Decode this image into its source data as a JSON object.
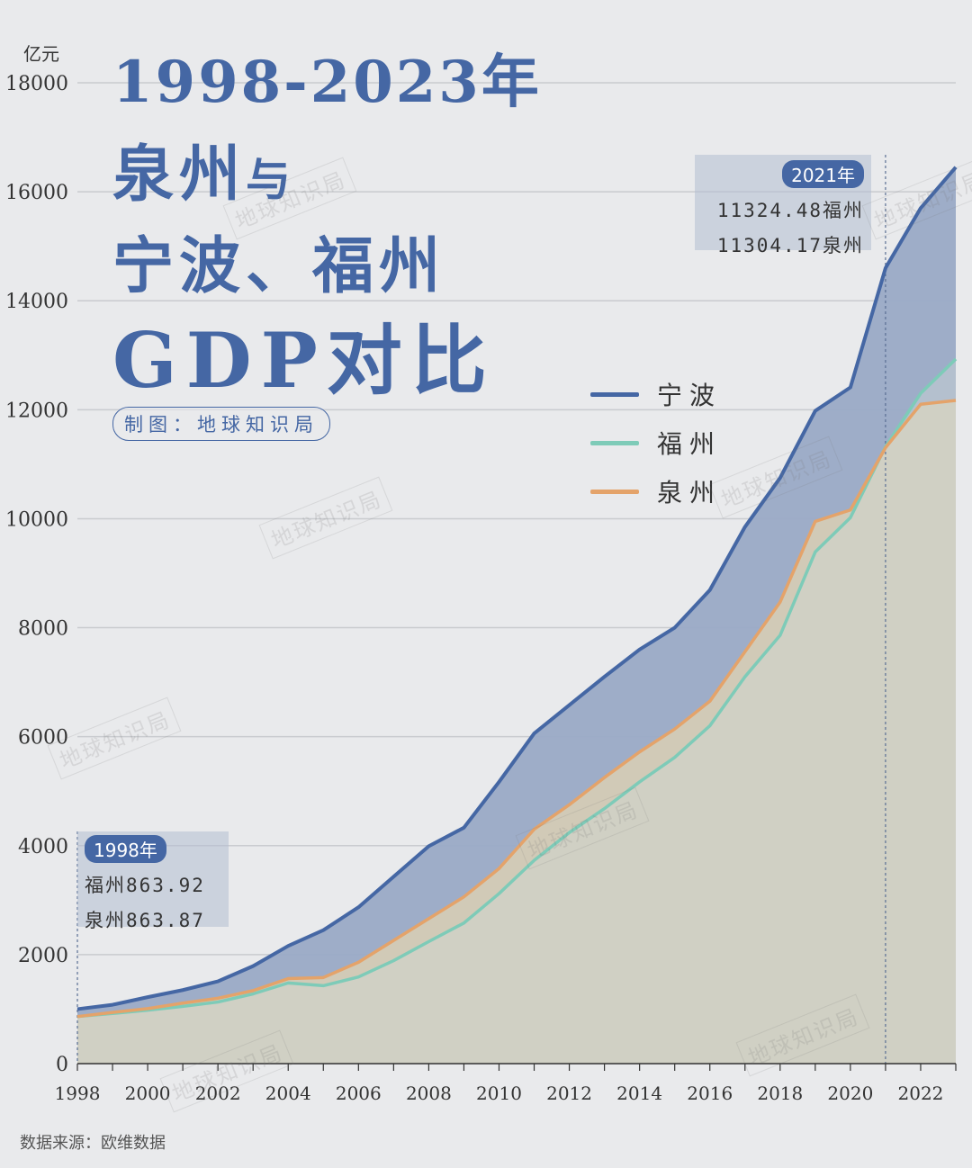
{
  "header": {
    "unit": "亿元",
    "title_line1": "1998-2023年",
    "title_line2a": "泉州",
    "title_line2b": "与",
    "title_line3": "宁波、福州",
    "title_line4": "GDP对比",
    "maker": "制图：地球知识局"
  },
  "footer": {
    "source": "数据来源：欧维数据"
  },
  "watermark": "地球知识局",
  "callouts": {
    "y2021": {
      "year": "2021年",
      "line1": "11324.48福州",
      "line2": "11304.17泉州"
    },
    "y1998": {
      "year": "1998年",
      "line1": "福州863.92",
      "line2": "泉州863.87"
    }
  },
  "colors": {
    "ningbo": "#4567a4",
    "fuzhou": "#7ecbb8",
    "quanzhou": "#e4a36a",
    "ningbo_fill": "#9aaac6",
    "quanzhou_fill": "#d4cbb6",
    "fuzhou_fill": "#cfd8d4"
  },
  "chart_data": {
    "type": "area",
    "title": "1998-2023年泉州与宁波、福州GDP对比",
    "ylabel": "亿元",
    "xlabel": "",
    "ylim": [
      0,
      18000
    ],
    "yticks": [
      0,
      2000,
      4000,
      6000,
      8000,
      10000,
      12000,
      14000,
      16000,
      18000
    ],
    "xticks": [
      1998,
      2000,
      2002,
      2004,
      2006,
      2008,
      2010,
      2012,
      2014,
      2016,
      2018,
      2020,
      2022
    ],
    "grid": true,
    "legend_position": "right-middle",
    "x": [
      1998,
      1999,
      2000,
      2001,
      2002,
      2003,
      2004,
      2005,
      2006,
      2007,
      2008,
      2009,
      2010,
      2011,
      2012,
      2013,
      2014,
      2015,
      2016,
      2017,
      2018,
      2019,
      2020,
      2021,
      2022,
      2023
    ],
    "series": [
      {
        "name": "宁波",
        "values": [
          1000,
          1080,
          1220,
          1350,
          1510,
          1790,
          2160,
          2450,
          2870,
          3430,
          3990,
          4330,
          5170,
          6060,
          6580,
          7100,
          7600,
          8000,
          8690,
          9850,
          10750,
          11980,
          12410,
          14600,
          15700,
          16450
        ]
      },
      {
        "name": "福州",
        "values": [
          863.92,
          920,
          980,
          1050,
          1130,
          1280,
          1480,
          1430,
          1590,
          1890,
          2240,
          2580,
          3120,
          3730,
          4240,
          4680,
          5170,
          5620,
          6200,
          7100,
          7860,
          9390,
          10020,
          11324.48,
          12300,
          12930
        ]
      },
      {
        "name": "泉州",
        "values": [
          863.87,
          940,
          1010,
          1110,
          1200,
          1340,
          1560,
          1580,
          1860,
          2260,
          2660,
          3060,
          3580,
          4300,
          4750,
          5250,
          5720,
          6140,
          6650,
          7560,
          8470,
          9950,
          10160,
          11304.17,
          12100,
          12170
        ]
      }
    ],
    "annotations": [
      {
        "x": 2021,
        "text": "2021年 11324.48福州 11304.17泉州"
      },
      {
        "x": 1998,
        "text": "1998年 福州863.92 泉州863.87"
      }
    ]
  }
}
